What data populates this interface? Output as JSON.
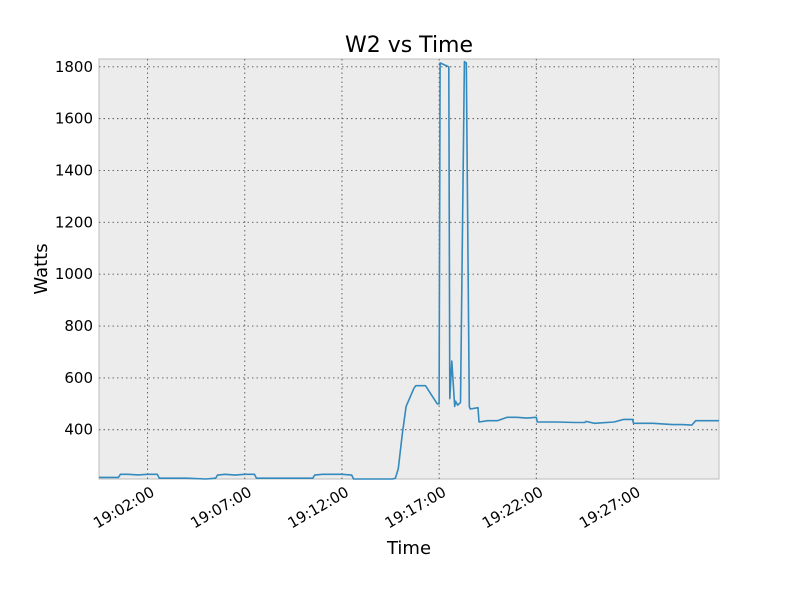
{
  "chart_data": {
    "type": "line",
    "title": "W2 vs Time",
    "xlabel": "Time",
    "ylabel": "Watts",
    "ylim": [
      210,
      1830
    ],
    "xlim_minutes": [
      -0.5,
      31.4
    ],
    "x_tick_labels": [
      "19:02:00",
      "19:07:00",
      "19:12:00",
      "19:17:00",
      "19:22:00",
      "19:27:00"
    ],
    "x_tick_minutes": [
      2,
      7,
      12,
      17,
      22,
      27
    ],
    "y_ticks": [
      400,
      600,
      800,
      1000,
      1200,
      1400,
      1600,
      1800
    ],
    "grid": true,
    "color": "#348abd",
    "series": [
      {
        "name": "W2",
        "x_minutes": [
          -0.5,
          0.5,
          0.6,
          1.0,
          1.5,
          2.0,
          2.5,
          2.6,
          3.0,
          4.0,
          5.0,
          5.5,
          5.6,
          6.0,
          6.5,
          7.0,
          7.5,
          7.6,
          8.0,
          9.0,
          10.0,
          10.5,
          10.6,
          11.0,
          12.0,
          12.5,
          12.6,
          13.0,
          14.0,
          14.6,
          14.75,
          14.9,
          15.1,
          15.3,
          15.7,
          15.8,
          16.3,
          16.9,
          17.0,
          17.05,
          17.5,
          17.55,
          17.65,
          17.8,
          17.85,
          17.95,
          18.1,
          18.3,
          18.4,
          18.55,
          18.6,
          19.0,
          19.05,
          19.5,
          20.0,
          20.5,
          21.0,
          21.5,
          22.0,
          22.05,
          23.0,
          24.0,
          24.5,
          24.55,
          25.0,
          26.0,
          26.5,
          26.95,
          27.0,
          28.0,
          29.0,
          29.5,
          30.0,
          30.2,
          31.4
        ],
        "y_watts": [
          216,
          216,
          228,
          228,
          226,
          228,
          228,
          213,
          213,
          213,
          210,
          213,
          225,
          228,
          225,
          228,
          228,
          213,
          213,
          213,
          213,
          213,
          225,
          228,
          228,
          225,
          210,
          210,
          210,
          210,
          213,
          250,
          380,
          490,
          560,
          570,
          570,
          500,
          500,
          1815,
          1800,
          520,
          665,
          490,
          510,
          495,
          505,
          1820,
          1815,
          490,
          480,
          485,
          430,
          435,
          435,
          448,
          448,
          445,
          448,
          430,
          430,
          428,
          428,
          432,
          425,
          430,
          440,
          440,
          425,
          425,
          420,
          420,
          418,
          435,
          435
        ]
      }
    ]
  }
}
